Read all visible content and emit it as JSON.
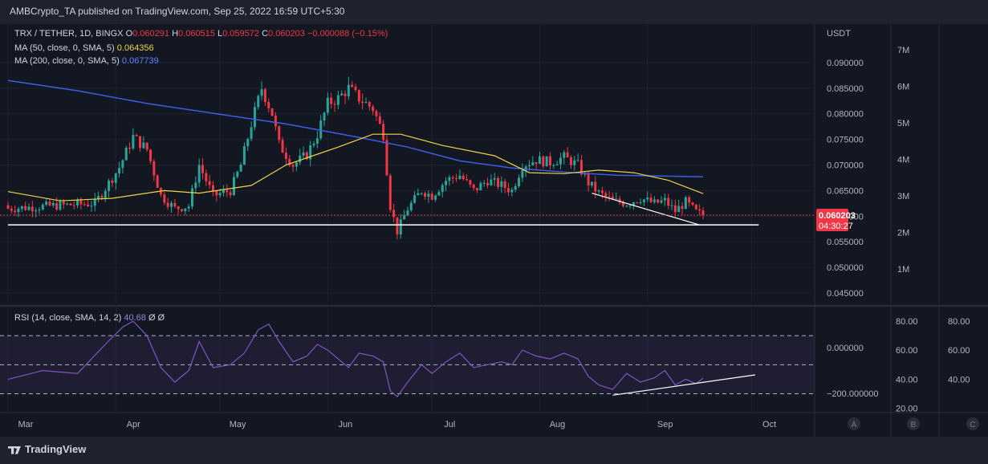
{
  "header": {
    "publisher_line": "AMBCrypto_TA published on TradingView.com, Sep 25, 2022 16:59 UTC+5:30"
  },
  "legend": {
    "symbol": "TRX / TETHER, 1D, BINGX",
    "o_label": "O",
    "o_value": "0.060291",
    "h_label": "H",
    "h_value": "0.060515",
    "l_label": "L",
    "l_value": "0.059572",
    "c_label": "C",
    "c_value": "0.060203",
    "change": "−0.000088 (−0.15%)",
    "ma50_label": "MA (50, close, 0, SMA, 5)",
    "ma50_value": "0.064356",
    "ma200_label": "MA (200, close, 0, SMA, 5)",
    "ma200_value": "0.067739",
    "rsi_label": "RSI (14, close, SMA, 14, 2)",
    "rsi_value": "40.68",
    "rsi_extra": "Ø  Ø"
  },
  "price_badge": {
    "price": "0.060203",
    "countdown": "04:30:27"
  },
  "footer": {
    "brand": "TradingView",
    "scale_buttons": [
      "A",
      "B",
      "C"
    ]
  },
  "colors": {
    "up": "#26a69a",
    "down": "#f23645",
    "ma50": "#f0d445",
    "ma200": "#3c5ee3",
    "rsi": "#7e57c2",
    "bg": "#131722"
  },
  "chart_data": {
    "type": "candlestick",
    "title": "TRX / TETHER, 1D, BINGX",
    "currency": "USDT",
    "price_ticks": [
      "0.090000",
      "0.085000",
      "0.080000",
      "0.075000",
      "0.070000",
      "0.065000",
      "0.060000",
      "0.055000",
      "0.050000",
      "0.045000"
    ],
    "price_tick_values": [
      0.09,
      0.085,
      0.08,
      0.075,
      0.07,
      0.065,
      0.06,
      0.055,
      0.05,
      0.045
    ],
    "price_range": [
      0.0425,
      0.0975
    ],
    "volume_ticks": [
      "7M",
      "6M",
      "5M",
      "4M",
      "3M",
      "2M",
      "1M"
    ],
    "x_ticks": [
      "Mar",
      "Apr",
      "May",
      "Jun",
      "Jul",
      "Aug",
      "Sep",
      "Oct"
    ],
    "x_tick_days": [
      0,
      31,
      61,
      92,
      122,
      153,
      184,
      214
    ],
    "close_keypoints": [
      [
        0,
        0.0615
      ],
      [
        12,
        0.062
      ],
      [
        25,
        0.0625
      ],
      [
        32,
        0.0695
      ],
      [
        36,
        0.0755
      ],
      [
        40,
        0.073
      ],
      [
        44,
        0.064
      ],
      [
        48,
        0.0615
      ],
      [
        52,
        0.062
      ],
      [
        55,
        0.07
      ],
      [
        59,
        0.064
      ],
      [
        64,
        0.065
      ],
      [
        67,
        0.07
      ],
      [
        70,
        0.078
      ],
      [
        73,
        0.085
      ],
      [
        76,
        0.08
      ],
      [
        78,
        0.074
      ],
      [
        82,
        0.07
      ],
      [
        86,
        0.072
      ],
      [
        89,
        0.076
      ],
      [
        92,
        0.082
      ],
      [
        95,
        0.083
      ],
      [
        98,
        0.085
      ],
      [
        101,
        0.083
      ],
      [
        105,
        0.081
      ],
      [
        108,
        0.076
      ],
      [
        110,
        0.062
      ],
      [
        112,
        0.057
      ],
      [
        115,
        0.0615
      ],
      [
        119,
        0.065
      ],
      [
        122,
        0.064
      ],
      [
        126,
        0.067
      ],
      [
        130,
        0.068
      ],
      [
        134,
        0.065
      ],
      [
        138,
        0.067
      ],
      [
        142,
        0.066
      ],
      [
        145,
        0.065
      ],
      [
        148,
        0.07
      ],
      [
        152,
        0.071
      ],
      [
        156,
        0.0705
      ],
      [
        160,
        0.0715
      ],
      [
        164,
        0.07
      ],
      [
        167,
        0.0665
      ],
      [
        170,
        0.0645
      ],
      [
        174,
        0.063
      ],
      [
        178,
        0.0625
      ],
      [
        182,
        0.0635
      ],
      [
        186,
        0.0625
      ],
      [
        189,
        0.063
      ],
      [
        192,
        0.061
      ],
      [
        195,
        0.0628
      ],
      [
        198,
        0.0608
      ],
      [
        200,
        0.0602
      ]
    ],
    "ma50_keypoints": [
      [
        0,
        0.0648
      ],
      [
        15,
        0.063
      ],
      [
        30,
        0.0635
      ],
      [
        45,
        0.065
      ],
      [
        55,
        0.0645
      ],
      [
        70,
        0.066
      ],
      [
        80,
        0.07
      ],
      [
        95,
        0.0735
      ],
      [
        105,
        0.076
      ],
      [
        113,
        0.076
      ],
      [
        125,
        0.0738
      ],
      [
        140,
        0.0718
      ],
      [
        150,
        0.0685
      ],
      [
        160,
        0.0683
      ],
      [
        170,
        0.069
      ],
      [
        180,
        0.0685
      ],
      [
        190,
        0.067
      ],
      [
        200,
        0.0644
      ]
    ],
    "ma200_keypoints": [
      [
        0,
        0.0865
      ],
      [
        20,
        0.0845
      ],
      [
        40,
        0.082
      ],
      [
        60,
        0.08
      ],
      [
        80,
        0.078
      ],
      [
        100,
        0.0755
      ],
      [
        115,
        0.0735
      ],
      [
        130,
        0.0708
      ],
      [
        145,
        0.0694
      ],
      [
        160,
        0.0686
      ],
      [
        175,
        0.068
      ],
      [
        200,
        0.0677
      ]
    ],
    "support_line": {
      "from": [
        0,
        0.0583
      ],
      "to": [
        216,
        0.0583
      ]
    },
    "falling_trendline": {
      "from": [
        168,
        0.0645
      ],
      "to": [
        199,
        0.0583
      ]
    },
    "last_close": 0.060203,
    "rsi": {
      "ticks_left": [
        "80.00",
        "60.00",
        "40.00",
        "20.00"
      ],
      "ticks_left_values": [
        80,
        60,
        40,
        20
      ],
      "ticks_right": [
        "80.00",
        "60.00",
        "40.00"
      ],
      "ticks_right_values": [
        80,
        60,
        40
      ],
      "misc_ticks": [
        "0.000000",
        "−200.000000"
      ],
      "bands": [
        70,
        50,
        30
      ],
      "range": [
        17,
        90
      ],
      "keypoints": [
        [
          0,
          40
        ],
        [
          10,
          46
        ],
        [
          20,
          44
        ],
        [
          28,
          64
        ],
        [
          33,
          76
        ],
        [
          36,
          80
        ],
        [
          40,
          70
        ],
        [
          44,
          48
        ],
        [
          48,
          38
        ],
        [
          52,
          46
        ],
        [
          55,
          66
        ],
        [
          59,
          48
        ],
        [
          64,
          50
        ],
        [
          68,
          58
        ],
        [
          72,
          74
        ],
        [
          75,
          78
        ],
        [
          78,
          66
        ],
        [
          82,
          52
        ],
        [
          86,
          56
        ],
        [
          89,
          64
        ],
        [
          92,
          60
        ],
        [
          95,
          54
        ],
        [
          98,
          48
        ],
        [
          101,
          58
        ],
        [
          105,
          56
        ],
        [
          108,
          52
        ],
        [
          110,
          32
        ],
        [
          112,
          28
        ],
        [
          115,
          38
        ],
        [
          119,
          50
        ],
        [
          122,
          44
        ],
        [
          126,
          52
        ],
        [
          130,
          58
        ],
        [
          134,
          48
        ],
        [
          138,
          50
        ],
        [
          142,
          52
        ],
        [
          145,
          50
        ],
        [
          148,
          60
        ],
        [
          152,
          56
        ],
        [
          156,
          54
        ],
        [
          160,
          58
        ],
        [
          164,
          54
        ],
        [
          167,
          42
        ],
        [
          170,
          36
        ],
        [
          174,
          33
        ],
        [
          178,
          44
        ],
        [
          182,
          38
        ],
        [
          186,
          41
        ],
        [
          189,
          46
        ],
        [
          192,
          36
        ],
        [
          195,
          40
        ],
        [
          198,
          37
        ],
        [
          200,
          40.68
        ]
      ],
      "divergence_line": {
        "from": [
          174,
          29
        ],
        "to": [
          215,
          43
        ]
      }
    }
  }
}
